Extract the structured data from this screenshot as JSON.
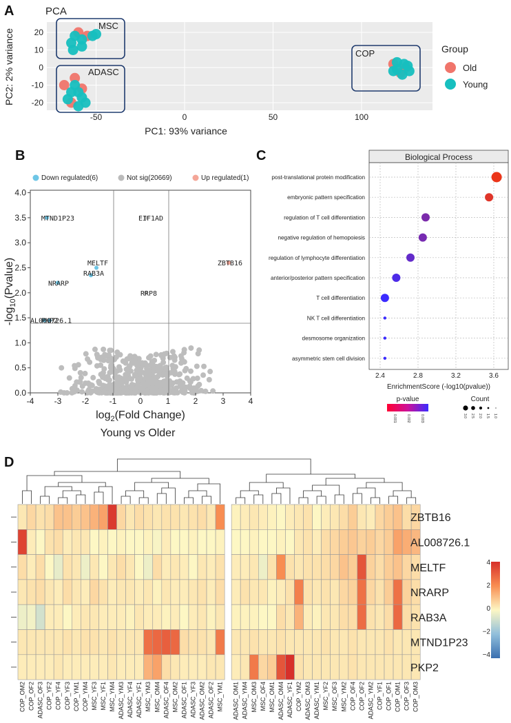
{
  "panelA": {
    "letter": "A",
    "title": "PCA",
    "xlabel": "PC1: 93% variance",
    "ylabel": "PC2: 2% variance",
    "xticks": [
      -50,
      0,
      50,
      100
    ],
    "yticks": [
      -20,
      -10,
      0,
      10,
      20
    ],
    "clusters": [
      "MSC",
      "ADASC",
      "COP"
    ],
    "legend_title": "Group",
    "legend": [
      {
        "label": "Old",
        "color": "#f0756b"
      },
      {
        "label": "Young",
        "color": "#17bfbf"
      }
    ]
  },
  "panelB": {
    "letter": "B",
    "legend": [
      {
        "label": "Down regulated(6)",
        "color": "#6ec6e6"
      },
      {
        "label": "Not sig(20669)",
        "color": "#bbbbbb"
      },
      {
        "label": "Up regulated(1)",
        "color": "#f4a698"
      }
    ],
    "xlabel_main": "log",
    "xlabel_sub": "2",
    "xlabel_rest": "(Fold Change)",
    "ylabel_main": "-log",
    "ylabel_sub": "10",
    "ylabel_rest": "(Pvalue)",
    "subtitle": "Young vs Older",
    "xticks": [
      -4,
      -3,
      -2,
      -1,
      0,
      1,
      2,
      3,
      4
    ],
    "yticks": [
      "0.0",
      "0.5",
      "1.0",
      "1.5",
      "2.0",
      "2.5",
      "3.0",
      "3.5",
      "4.0"
    ],
    "genes": [
      {
        "label": "MTND1P23",
        "x": -3.4,
        "y": 3.5
      },
      {
        "label": "EIF1AD",
        "x": 0.2,
        "y": 3.5
      },
      {
        "label": "MELTF",
        "x": -1.6,
        "y": 2.5
      },
      {
        "label": "RAB3A",
        "x": -1.8,
        "y": 2.35
      },
      {
        "label": "ZBTB16",
        "x": 3.2,
        "y": 2.6
      },
      {
        "label": "NRARP",
        "x": -3.0,
        "y": 2.2
      },
      {
        "label": "RRP8",
        "x": 0.2,
        "y": 2.0
      },
      {
        "label": "AL008726.1",
        "x": -3.3,
        "y": 1.45
      },
      {
        "label": "PKP2",
        "x": -3.5,
        "y": 1.45
      }
    ]
  },
  "panelC": {
    "letter": "C",
    "title": "Biological Process",
    "xlabel": "EnrichmentScore (-log10(pvalue))",
    "xticks": [
      "2.4",
      "2.8",
      "3.2",
      "3.6"
    ],
    "terms": [
      {
        "label": "post-translational protein modification",
        "score": 3.63,
        "count": 3
      },
      {
        "label": "embryonic pattern specification",
        "score": 3.55,
        "count": 2
      },
      {
        "label": "regulation of T cell differentiation",
        "score": 2.88,
        "count": 2
      },
      {
        "label": "negative regulation of hemopoiesis",
        "score": 2.85,
        "count": 2
      },
      {
        "label": "regulation of lymphocyte differentiation",
        "score": 2.72,
        "count": 2
      },
      {
        "label": "anterior/posterior pattern specification",
        "score": 2.57,
        "count": 2
      },
      {
        "label": "T cell differentiation",
        "score": 2.45,
        "count": 2
      },
      {
        "label": "NK T cell differentiation",
        "score": 2.45,
        "count": 1
      },
      {
        "label": "desmosome organization",
        "score": 2.45,
        "count": 1
      },
      {
        "label": "asymmetric stem cell division",
        "score": 2.45,
        "count": 1
      }
    ],
    "pvalue_title": "p-value",
    "pvalue_ticks": [
      "0.001",
      "0.002",
      "0.003"
    ],
    "count_title": "Count",
    "count_ticks": [
      "3.0",
      "2.5",
      "2.0",
      "1.5",
      "1.0"
    ]
  },
  "panelD": {
    "letter": "D",
    "genes": [
      "ZBTB16",
      "AL008726.1",
      "MELTF",
      "NRARP",
      "RAB3A",
      "MTND1P23",
      "PKP2"
    ],
    "samples": [
      "COP_OM2",
      "COP_OF2",
      "ADASC_OF3",
      "COP_YF2",
      "COP_YF4",
      "COP_YF3",
      "COP_YM1",
      "COP_YM4",
      "MSC_YF3",
      "MSC_YF1",
      "MSC_YM4",
      "ADASC_YM3",
      "ADASC_YF4",
      "ADASC_YF1",
      "MSC_YM3",
      "MSC_OM4",
      "ADASC_OF4",
      "MSC_OM2",
      "ADASC_OF1",
      "ADASC_YF3",
      "ADASC_OM2",
      "ADASC_OF2",
      "MSC_YM1",
      "ADASC_OM1",
      "ADASC_YM4",
      "MSC_OM3",
      "MSC_OF4",
      "MSC_OM1",
      "ADASC_OM4",
      "ADASC_YF1",
      "COP_YM2",
      "ADASC_OM3",
      "ADASC_YM1",
      "MSC_YF2",
      "MSC_OF3",
      "MSC_YM2",
      "COP_OF4",
      "COP_OF2",
      "ADASC_YM2",
      "COP_YF1",
      "COP_OF1",
      "COP_OM1",
      "COP_OF3",
      "COP_OM3"
    ],
    "colorbar_ticks": [
      "4",
      "2",
      "0",
      "−2",
      "−4"
    ],
    "values": [
      [
        0.3,
        0.6,
        0.4,
        0.5,
        1.0,
        1.0,
        0.8,
        1.0,
        1.3,
        1.6,
        3.8,
        0.6,
        0.3,
        0.5,
        0.4,
        0.3,
        0.4,
        0.4,
        0.3,
        0.4,
        0.5,
        0.3,
        2.0,
        0.1,
        0.2,
        0.3,
        0.2,
        0.1,
        0.0,
        0.2,
        0.3,
        0.4,
        0.0,
        0.2,
        0.3,
        0.5,
        0.8,
        0.3,
        0.2,
        0.6,
        0.8,
        1.0,
        0.5,
        0.6
      ],
      [
        3.6,
        0.2,
        0.0,
        0.4,
        0.5,
        0.2,
        0.3,
        0.3,
        0.0,
        0.1,
        0.0,
        0.1,
        0.0,
        0.0,
        0.1,
        -0.1,
        0.2,
        0.0,
        0.0,
        0.1,
        0.0,
        0.0,
        0.1,
        0.0,
        0.0,
        0.1,
        0.0,
        0.0,
        0.1,
        0.0,
        0.3,
        0.4,
        0.2,
        0.5,
        0.6,
        0.8,
        0.9,
        0.7,
        0.8,
        0.6,
        0.8,
        1.6,
        1.4,
        1.2
      ],
      [
        0.5,
        0.2,
        0.5,
        0.0,
        -0.4,
        0.4,
        0.3,
        -0.3,
        0.3,
        0.0,
        0.3,
        0.5,
        0.3,
        0.0,
        -0.3,
        0.5,
        0.2,
        0.3,
        0.2,
        0.0,
        0.3,
        0.2,
        0.4,
        0.2,
        0.2,
        0.3,
        -0.3,
        0.4,
        2.0,
        0.4,
        0.3,
        0.4,
        0.4,
        0.5,
        0.6,
        1.0,
        0.8,
        3.2,
        0.7,
        0.5,
        0.8,
        1.0,
        0.6,
        0.5
      ],
      [
        0.3,
        0.4,
        0.5,
        0.3,
        0.2,
        0.5,
        0.3,
        0.2,
        0.6,
        0.4,
        0.2,
        0.3,
        0.3,
        0.2,
        0.3,
        0.1,
        0.3,
        0.2,
        0.2,
        0.3,
        0.4,
        0.2,
        0.5,
        0.2,
        0.4,
        0.3,
        0.3,
        0.1,
        0.2,
        0.4,
        2.3,
        0.4,
        0.3,
        0.4,
        0.3,
        0.6,
        0.7,
        2.6,
        0.6,
        0.4,
        0.8,
        2.6,
        0.7,
        0.5
      ],
      [
        -0.3,
        -0.2,
        -0.8,
        0.2,
        0.2,
        0.0,
        0.2,
        0.3,
        0.3,
        0.2,
        0.2,
        0.2,
        0.1,
        0.3,
        0.2,
        0.2,
        0.1,
        0.2,
        0.0,
        0.2,
        0.3,
        0.1,
        0.3,
        0.1,
        0.1,
        0.1,
        0.0,
        0.0,
        0.5,
        0.3,
        1.3,
        0.2,
        0.1,
        0.3,
        0.3,
        0.5,
        0.5,
        2.7,
        0.4,
        0.3,
        0.5,
        2.8,
        0.5,
        0.4
      ],
      [
        0.3,
        0.3,
        0.3,
        0.3,
        0.3,
        0.4,
        0.3,
        0.4,
        0.4,
        0.3,
        0.4,
        0.3,
        0.3,
        0.3,
        2.6,
        2.8,
        3.0,
        2.8,
        0.5,
        0.4,
        0.4,
        0.3,
        2.4,
        0.3,
        0.3,
        0.4,
        0.3,
        0.3,
        0.4,
        0.3,
        0.3,
        0.3,
        0.3,
        0.4,
        0.3,
        0.3,
        0.4,
        0.3,
        0.3,
        0.3,
        0.4,
        0.3,
        0.3,
        0.3
      ],
      [
        0.2,
        0.2,
        0.2,
        0.2,
        0.3,
        0.2,
        0.2,
        0.2,
        0.2,
        0.2,
        0.3,
        0.2,
        0.2,
        0.2,
        1.3,
        1.6,
        0.5,
        0.3,
        0.2,
        0.2,
        0.2,
        0.3,
        0.3,
        0.2,
        0.3,
        2.4,
        0.6,
        0.8,
        3.2,
        4.0,
        0.4,
        0.3,
        0.3,
        0.3,
        0.3,
        0.3,
        0.4,
        0.3,
        0.3,
        0.3,
        0.3,
        0.3,
        0.3,
        0.3
      ]
    ]
  }
}
